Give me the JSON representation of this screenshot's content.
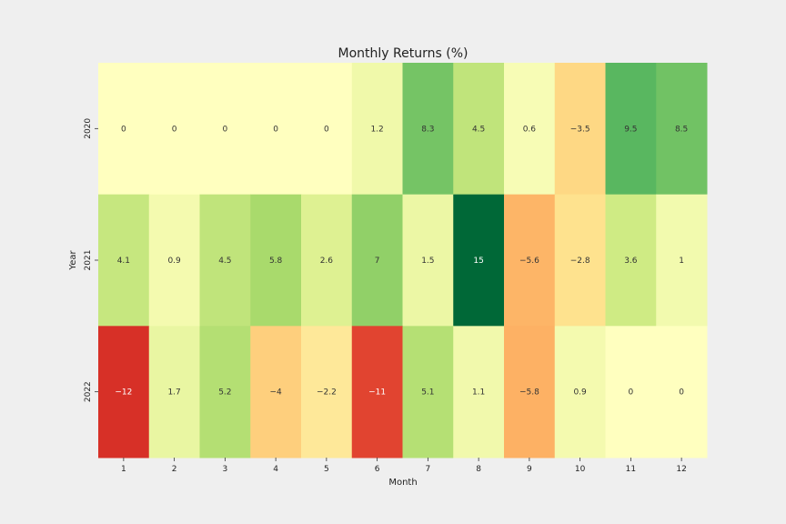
{
  "chart_data": {
    "type": "heatmap",
    "title": "Monthly Returns (%)",
    "xlabel": "Month",
    "ylabel": "Year",
    "x": [
      "1",
      "2",
      "3",
      "4",
      "5",
      "6",
      "7",
      "8",
      "9",
      "10",
      "11",
      "12"
    ],
    "y": [
      "2020",
      "2021",
      "2022"
    ],
    "values": [
      [
        0,
        0,
        0,
        0,
        0,
        1.2,
        8.3,
        4.5,
        0.6,
        -3.5,
        9.5,
        8.5
      ],
      [
        4.1,
        0.9,
        4.5,
        5.8,
        2.6,
        7,
        1.5,
        15,
        -5.6,
        -2.8,
        3.6,
        1
      ],
      [
        -12,
        1.7,
        5.2,
        -4,
        -2.2,
        -11,
        5.1,
        1.1,
        -5.8,
        0.9,
        0,
        0
      ]
    ],
    "vmin": -15,
    "vmax": 15,
    "colormap": "RdYlGn",
    "colorbar": false,
    "grid": false
  }
}
